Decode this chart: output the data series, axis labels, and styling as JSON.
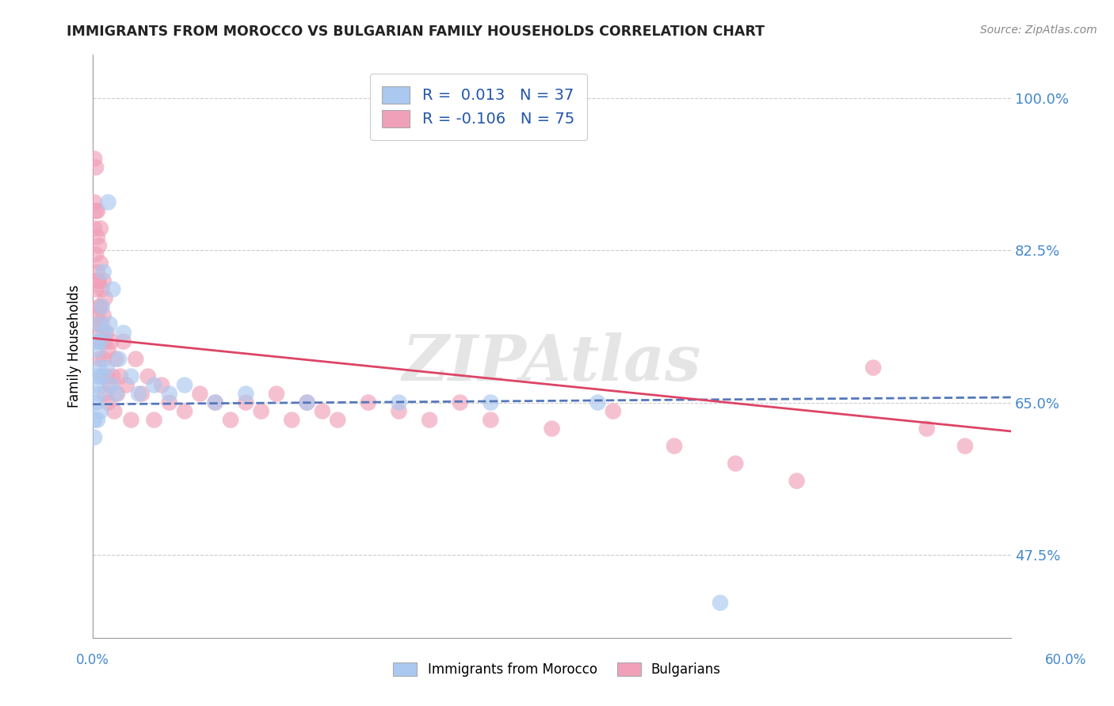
{
  "title": "IMMIGRANTS FROM MOROCCO VS BULGARIAN FAMILY HOUSEHOLDS CORRELATION CHART",
  "source": "Source: ZipAtlas.com",
  "ylabel": "Family Households",
  "yticks": [
    "47.5%",
    "65.0%",
    "82.5%",
    "100.0%"
  ],
  "ytick_vals": [
    0.475,
    0.65,
    0.825,
    1.0
  ],
  "xmin": 0.0,
  "xmax": 0.6,
  "ymin": 0.38,
  "ymax": 1.05,
  "legend_line1": "R =  0.013   N = 37",
  "legend_line2": "R = -0.106   N = 75",
  "color_morocco": "#aac8f0",
  "color_bulgarian": "#f0a0b8",
  "line_color_morocco": "#5577bb",
  "line_color_bulgarian": "#dd4466",
  "watermark": "ZIPAtlas",
  "morocco_x": [
    0.001,
    0.001,
    0.002,
    0.002,
    0.002,
    0.003,
    0.003,
    0.003,
    0.004,
    0.004,
    0.004,
    0.005,
    0.005,
    0.006,
    0.006,
    0.007,
    0.008,
    0.009,
    0.01,
    0.011,
    0.012,
    0.013,
    0.015,
    0.017,
    0.02,
    0.025,
    0.03,
    0.04,
    0.05,
    0.06,
    0.08,
    0.1,
    0.14,
    0.2,
    0.26,
    0.33,
    0.41
  ],
  "morocco_y": [
    0.63,
    0.61,
    0.67,
    0.72,
    0.65,
    0.68,
    0.63,
    0.71,
    0.69,
    0.66,
    0.74,
    0.72,
    0.64,
    0.76,
    0.68,
    0.8,
    0.73,
    0.69,
    0.88,
    0.74,
    0.67,
    0.78,
    0.66,
    0.7,
    0.73,
    0.68,
    0.66,
    0.67,
    0.66,
    0.67,
    0.65,
    0.66,
    0.65,
    0.65,
    0.65,
    0.65,
    0.42
  ],
  "bulgarian_x": [
    0.001,
    0.001,
    0.001,
    0.002,
    0.002,
    0.002,
    0.002,
    0.003,
    0.003,
    0.003,
    0.003,
    0.003,
    0.003,
    0.004,
    0.004,
    0.004,
    0.004,
    0.005,
    0.005,
    0.005,
    0.005,
    0.006,
    0.006,
    0.006,
    0.006,
    0.007,
    0.007,
    0.007,
    0.008,
    0.008,
    0.008,
    0.009,
    0.009,
    0.01,
    0.01,
    0.011,
    0.012,
    0.013,
    0.014,
    0.015,
    0.016,
    0.018,
    0.02,
    0.022,
    0.025,
    0.028,
    0.032,
    0.036,
    0.04,
    0.045,
    0.05,
    0.06,
    0.07,
    0.08,
    0.09,
    0.1,
    0.11,
    0.12,
    0.13,
    0.14,
    0.15,
    0.16,
    0.18,
    0.2,
    0.22,
    0.24,
    0.26,
    0.3,
    0.34,
    0.38,
    0.42,
    0.46,
    0.51,
    0.545,
    0.57
  ],
  "bulgarian_y": [
    0.88,
    0.85,
    0.93,
    0.78,
    0.82,
    0.87,
    0.92,
    0.74,
    0.79,
    0.84,
    0.87,
    0.75,
    0.8,
    0.7,
    0.76,
    0.83,
    0.79,
    0.72,
    0.76,
    0.81,
    0.85,
    0.68,
    0.73,
    0.78,
    0.74,
    0.7,
    0.75,
    0.79,
    0.66,
    0.72,
    0.77,
    0.68,
    0.73,
    0.65,
    0.71,
    0.67,
    0.72,
    0.68,
    0.64,
    0.7,
    0.66,
    0.68,
    0.72,
    0.67,
    0.63,
    0.7,
    0.66,
    0.68,
    0.63,
    0.67,
    0.65,
    0.64,
    0.66,
    0.65,
    0.63,
    0.65,
    0.64,
    0.66,
    0.63,
    0.65,
    0.64,
    0.63,
    0.65,
    0.64,
    0.63,
    0.65,
    0.63,
    0.62,
    0.64,
    0.6,
    0.58,
    0.56,
    0.69,
    0.62,
    0.6
  ],
  "morocco_line_x": [
    0.0,
    0.6
  ],
  "morocco_line_y": [
    0.648,
    0.656
  ],
  "bulgarian_line_x": [
    0.0,
    0.6
  ],
  "bulgarian_line_y": [
    0.724,
    0.617
  ]
}
